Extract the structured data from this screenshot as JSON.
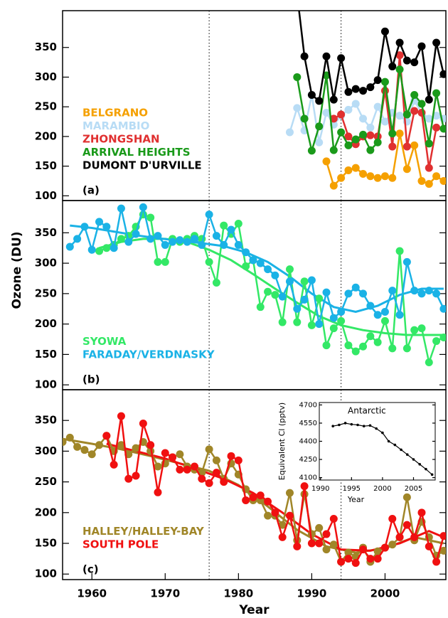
{
  "chart_data": [
    {
      "type": "line",
      "panel_label": "(a)",
      "xlim": [
        1956,
        2008.3
      ],
      "ylim": [
        92,
        412
      ],
      "yticks": [
        100,
        150,
        200,
        250,
        300,
        350
      ],
      "vlines": [
        1976,
        1994
      ],
      "legend": "lower-left",
      "series": [
        {
          "name": "BELGRANO",
          "color": "#f5a000",
          "x": [
            1992,
            1993,
            1994,
            1995,
            1996,
            1997,
            1998,
            1999,
            2000,
            2001,
            2002,
            2003,
            2004,
            2005,
            2006,
            2007,
            2008
          ],
          "values": [
            158,
            117,
            130,
            143,
            147,
            137,
            133,
            130,
            133,
            130,
            205,
            145,
            185,
            125,
            120,
            133,
            125
          ]
        },
        {
          "name": "MARAMBIO",
          "color": "#b8dcf5",
          "x": [
            1987,
            1988,
            1989,
            1990,
            1991,
            1992,
            1993,
            1994,
            1995,
            1996,
            1997,
            1998,
            1999,
            2000,
            2001,
            2002,
            2003,
            2004,
            2005,
            2006,
            2007,
            2008
          ],
          "values": [
            207,
            248,
            210,
            270,
            190,
            240,
            220,
            235,
            245,
            255,
            230,
            215,
            250,
            225,
            240,
            235,
            225,
            260,
            240,
            230,
            235,
            230
          ]
        },
        {
          "name": "ZHONGSHAN",
          "color": "#e03030",
          "x": [
            1993,
            1994,
            1995,
            1996,
            1997,
            1998,
            1999,
            2000,
            2001,
            2002,
            2003,
            2004,
            2005,
            2006,
            2007
          ],
          "values": [
            230,
            237,
            200,
            187,
            200,
            202,
            200,
            277,
            183,
            337,
            183,
            243,
            240,
            147,
            215
          ]
        },
        {
          "name": "ARRIVAL HEIGHTS",
          "color": "#1a9a1a",
          "x": [
            1988,
            1989,
            1990,
            1991,
            1992,
            1993,
            1994,
            1995,
            1996,
            1997,
            1998,
            1999,
            2000,
            2001,
            2002,
            2003,
            2004,
            2005,
            2006,
            2007,
            2008
          ],
          "values": [
            300,
            230,
            176,
            217,
            303,
            177,
            207,
            185,
            195,
            203,
            177,
            190,
            292,
            205,
            313,
            237,
            270,
            255,
            188,
            273,
            213
          ]
        },
        {
          "name": "DUMONT D'URVILLE",
          "color": "#000000",
          "x": [
            1988,
            1989,
            1990,
            1991,
            1992,
            1993,
            1994,
            1995,
            1996,
            1997,
            1998,
            1999,
            2000,
            2001,
            2002,
            2003,
            2004,
            2005,
            2006,
            2007,
            2008
          ],
          "values": [
            440,
            335,
            270,
            260,
            335,
            262,
            332,
            275,
            280,
            277,
            283,
            295,
            377,
            318,
            358,
            328,
            325,
            352,
            262,
            358,
            305
          ]
        }
      ]
    },
    {
      "type": "line",
      "panel_label": "(b)",
      "y_label": "Ozone (DU)",
      "xlim": [
        1956,
        2008.3
      ],
      "ylim": [
        92,
        403
      ],
      "yticks": [
        100,
        150,
        200,
        250,
        300,
        350
      ],
      "vlines": [
        1976,
        1994
      ],
      "legend": "lower-left",
      "series": [
        {
          "name": "SYOWA",
          "color": "#33e866",
          "x": [
            1961,
            1962,
            1963,
            1964,
            1965,
            1966,
            1967,
            1968,
            1969,
            1970,
            1971,
            1972,
            1973,
            1974,
            1975,
            1976,
            1977,
            1978,
            1979,
            1980,
            1981,
            1982,
            1983,
            1984,
            1985,
            1986,
            1987,
            1988,
            1989,
            1990,
            1991,
            1992,
            1993,
            1994,
            1995,
            1996,
            1997,
            1998,
            1999,
            2000,
            2001,
            2002,
            2003,
            2004,
            2005,
            2006,
            2007,
            2008
          ],
          "values": [
            320,
            325,
            330,
            340,
            345,
            360,
            380,
            375,
            302,
            302,
            340,
            335,
            340,
            345,
            340,
            302,
            268,
            362,
            348,
            365,
            295,
            305,
            228,
            253,
            248,
            203,
            290,
            203,
            270,
            198,
            242,
            165,
            193,
            205,
            165,
            155,
            163,
            180,
            170,
            205,
            160,
            320,
            160,
            190,
            193,
            137,
            172,
            178
          ],
          "fit_x": [
            1961,
            1964,
            1967,
            1970,
            1973,
            1976,
            1979,
            1982,
            1985,
            1988,
            1991,
            1994,
            1997,
            2000,
            2003,
            2006,
            2008
          ],
          "fit_values": [
            325,
            335,
            340,
            340,
            335,
            322,
            305,
            282,
            258,
            235,
            213,
            198,
            190,
            185,
            182,
            182,
            182
          ]
        },
        {
          "name": "FARADAY/VERDNASKY",
          "color": "#1ab2e6",
          "x": [
            1957,
            1958,
            1959,
            1960,
            1961,
            1962,
            1963,
            1964,
            1965,
            1966,
            1967,
            1968,
            1969,
            1970,
            1971,
            1972,
            1973,
            1974,
            1975,
            1976,
            1977,
            1978,
            1979,
            1980,
            1981,
            1982,
            1983,
            1984,
            1985,
            1986,
            1987,
            1988,
            1989,
            1990,
            1991,
            1992,
            1993,
            1994,
            1995,
            1996,
            1997,
            1998,
            1999,
            2000,
            2001,
            2002,
            2003,
            2004,
            2005,
            2006,
            2007,
            2008
          ],
          "values": [
            327,
            340,
            360,
            322,
            368,
            360,
            325,
            390,
            335,
            348,
            392,
            340,
            345,
            330,
            335,
            338,
            335,
            340,
            330,
            380,
            345,
            330,
            355,
            330,
            318,
            305,
            300,
            290,
            280,
            245,
            270,
            225,
            240,
            272,
            200,
            252,
            210,
            220,
            250,
            260,
            250,
            230,
            215,
            220,
            255,
            215,
            302,
            255,
            250,
            255,
            250,
            225
          ],
          "fit_x": [
            1957,
            1960,
            1963,
            1966,
            1969,
            1972,
            1975,
            1978,
            1981,
            1984,
            1987,
            1990,
            1993,
            1996,
            1999,
            2002,
            2005,
            2008
          ],
          "fit_values": [
            362,
            358,
            352,
            346,
            341,
            337,
            333,
            328,
            318,
            302,
            278,
            250,
            228,
            220,
            230,
            248,
            258,
            258
          ]
        }
      ]
    },
    {
      "type": "line",
      "panel_label": "(c)",
      "x_label": "Year",
      "xlim": [
        1956,
        2008.3
      ],
      "ylim": [
        91,
        400
      ],
      "yticks": [
        100,
        150,
        200,
        250,
        300,
        350
      ],
      "xticks": [
        1960,
        1970,
        1980,
        1990,
        2000
      ],
      "vlines": [
        1976,
        1994
      ],
      "legend": "lower-left",
      "series": [
        {
          "name": "HALLEY/HALLEY-BAY",
          "color": "#a08628",
          "x": [
            1956,
            1957,
            1958,
            1959,
            1960,
            1961,
            1962,
            1963,
            1964,
            1965,
            1966,
            1967,
            1968,
            1969,
            1970,
            1971,
            1972,
            1973,
            1974,
            1975,
            1976,
            1977,
            1978,
            1979,
            1980,
            1981,
            1982,
            1983,
            1984,
            1985,
            1986,
            1987,
            1988,
            1989,
            1990,
            1991,
            1992,
            1993,
            1994,
            1995,
            1996,
            1997,
            1998,
            1999,
            2000,
            2001,
            2002,
            2003,
            2004,
            2005,
            2006,
            2007,
            2008
          ],
          "values": [
            315,
            322,
            307,
            302,
            295,
            310,
            325,
            300,
            310,
            295,
            305,
            315,
            300,
            275,
            280,
            290,
            295,
            275,
            270,
            265,
            303,
            285,
            255,
            280,
            262,
            238,
            220,
            220,
            195,
            195,
            180,
            232,
            155,
            230,
            165,
            175,
            140,
            148,
            120,
            135,
            128,
            143,
            120,
            137,
            143,
            148,
            160,
            225,
            155,
            185,
            160,
            130,
            138
          ],
          "fit_x": [
            1956,
            1960,
            1964,
            1968,
            1972,
            1976,
            1980,
            1984,
            1988,
            1992,
            1996,
            2000,
            2004,
            2008
          ],
          "fit_values": [
            320,
            312,
            303,
            292,
            280,
            268,
            245,
            210,
            172,
            145,
            135,
            142,
            160,
            150
          ]
        },
        {
          "name": "SOUTH POLE",
          "color": "#f01010",
          "x": [
            1962,
            1963,
            1964,
            1965,
            1966,
            1967,
            1968,
            1969,
            1970,
            1971,
            1972,
            1973,
            1974,
            1975,
            1976,
            1977,
            1978,
            1979,
            1980,
            1981,
            1982,
            1983,
            1984,
            1985,
            1986,
            1987,
            1988,
            1989,
            1990,
            1991,
            1992,
            1993,
            1994,
            1995,
            1996,
            1997,
            1998,
            1999,
            2000,
            2001,
            2002,
            2003,
            2004,
            2005,
            2006,
            2007,
            2008
          ],
          "values": [
            325,
            278,
            357,
            255,
            260,
            345,
            310,
            233,
            297,
            290,
            270,
            270,
            275,
            255,
            248,
            265,
            250,
            292,
            285,
            220,
            225,
            228,
            218,
            200,
            160,
            195,
            145,
            243,
            150,
            150,
            165,
            190,
            120,
            125,
            118,
            140,
            125,
            125,
            143,
            190,
            160,
            180,
            160,
            200,
            145,
            120,
            162
          ],
          "fit_x": [
            1962,
            1966,
            1970,
            1974,
            1978,
            1982,
            1986,
            1990,
            1994,
            1998,
            2002,
            2006,
            2008
          ],
          "fit_values": [
            312,
            300,
            288,
            272,
            255,
            232,
            200,
            165,
            140,
            138,
            150,
            170,
            160
          ]
        }
      ]
    },
    {
      "type": "line",
      "title": "Antarctic",
      "x_label": "Year",
      "y_label": "Equivalent Cl (pptv)",
      "xlim": [
        1989.8,
        2008.5
      ],
      "ylim": [
        4080,
        4720
      ],
      "yticks": [
        4100,
        4250,
        4400,
        4550,
        4700
      ],
      "xticks": [
        1990,
        1995,
        2000,
        2005
      ],
      "series": [
        {
          "color": "#000000",
          "x": [
            1992,
            1993,
            1994,
            1995,
            1996,
            1997,
            1998,
            1999,
            2000,
            2001,
            2002,
            2003,
            2004,
            2005,
            2006,
            2007,
            2008
          ],
          "values": [
            4525,
            4535,
            4550,
            4540,
            4535,
            4525,
            4530,
            4505,
            4470,
            4400,
            4370,
            4330,
            4290,
            4250,
            4210,
            4170,
            4125
          ]
        }
      ]
    }
  ]
}
